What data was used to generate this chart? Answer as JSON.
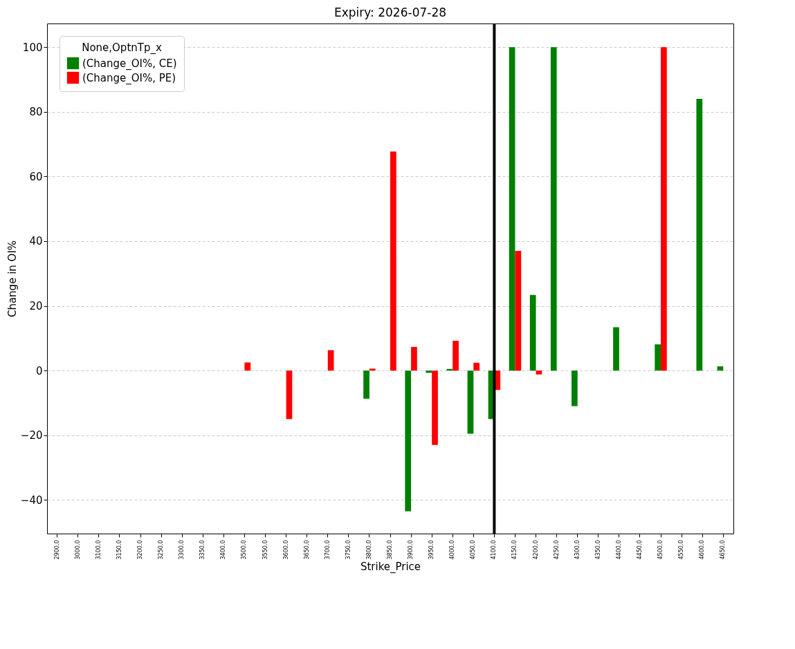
{
  "chart_data": {
    "type": "bar",
    "title": "Expiry: 2026-07-28",
    "xlabel": "Strike_Price",
    "ylabel": "Change in OI%",
    "legend_title": "None,OptnTp_x",
    "categories": [
      "2900.0",
      "3000.0",
      "3100.0",
      "3150.0",
      "3200.0",
      "3250.0",
      "3300.0",
      "3350.0",
      "3400.0",
      "3500.0",
      "3550.0",
      "3600.0",
      "3650.0",
      "3700.0",
      "3750.0",
      "3800.0",
      "3850.0",
      "3900.0",
      "3950.0",
      "4000.0",
      "4050.0",
      "4100.0",
      "4150.0",
      "4200.0",
      "4250.0",
      "4300.0",
      "4350.0",
      "4400.0",
      "4450.0",
      "4500.0",
      "4550.0",
      "4600.0",
      "4650.0"
    ],
    "series": [
      {
        "name": "(Change_OI%, CE)",
        "color": "#008000",
        "values": [
          null,
          null,
          null,
          null,
          null,
          null,
          null,
          null,
          null,
          null,
          null,
          null,
          null,
          null,
          null,
          -8.7,
          null,
          -43.5,
          -0.7,
          0.5,
          -19.5,
          -15,
          100,
          23.4,
          100,
          -11,
          null,
          13.4,
          null,
          8.1,
          null,
          84,
          1.3
        ]
      },
      {
        "name": "(Change_OI%, PE)",
        "color": "#ff0000",
        "values": [
          null,
          null,
          null,
          null,
          null,
          null,
          null,
          null,
          null,
          2.5,
          null,
          -15,
          null,
          6.3,
          null,
          0.6,
          67.7,
          7.3,
          -23,
          9.2,
          2.4,
          -6,
          37,
          -1.2,
          null,
          null,
          null,
          null,
          null,
          100,
          null,
          null,
          null
        ]
      }
    ],
    "ylim": [
      -50.4,
      107.3
    ],
    "yticks": [
      -40,
      -20,
      0,
      20,
      40,
      60,
      80,
      100
    ],
    "grid": "y",
    "legend": "top left",
    "ref_lines": [
      {
        "axis": "x",
        "value": "4100.0",
        "color": "#000000"
      }
    ]
  }
}
